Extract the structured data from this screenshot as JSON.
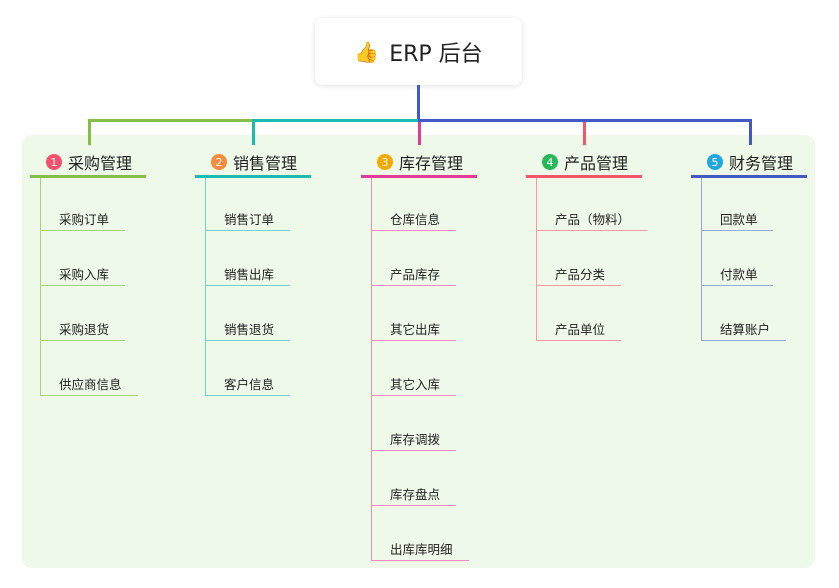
{
  "root": {
    "icon": "thumbs-up-icon",
    "title": "ERP 后台",
    "line_color": "#4458c4"
  },
  "categories": [
    {
      "num": "1",
      "title": "采购管理",
      "badge_color": "#f5516c",
      "color": "#86bc4a",
      "child_color": "#a8d27a",
      "children": [
        "采购订单",
        "采购入库",
        "采购退货",
        "供应商信息"
      ]
    },
    {
      "num": "2",
      "title": "销售管理",
      "badge_color": "#f98b3a",
      "color": "#1bbcb0",
      "child_color": "#6fd3c9",
      "children": [
        "销售订单",
        "销售出库",
        "销售退货",
        "客户信息"
      ]
    },
    {
      "num": "3",
      "title": "库存管理",
      "badge_color": "#f8a900",
      "color": "#e23c96",
      "child_color": "#ee8cc0",
      "children": [
        "仓库信息",
        "产品库存",
        "其它出库",
        "其它入库",
        "库存调拨",
        "库存盘点",
        "出库库明细"
      ]
    },
    {
      "num": "4",
      "title": "产品管理",
      "badge_color": "#27b85a",
      "color": "#f5566a",
      "child_color": "#f59aa4",
      "children": [
        "产品（物料）",
        "产品分类",
        "产品单位"
      ]
    },
    {
      "num": "5",
      "title": "财务管理",
      "badge_color": "#1fa8e0",
      "color": "#4458c4",
      "child_color": "#97a6db",
      "children": [
        "回款单",
        "付款单",
        "结算账户"
      ]
    }
  ]
}
